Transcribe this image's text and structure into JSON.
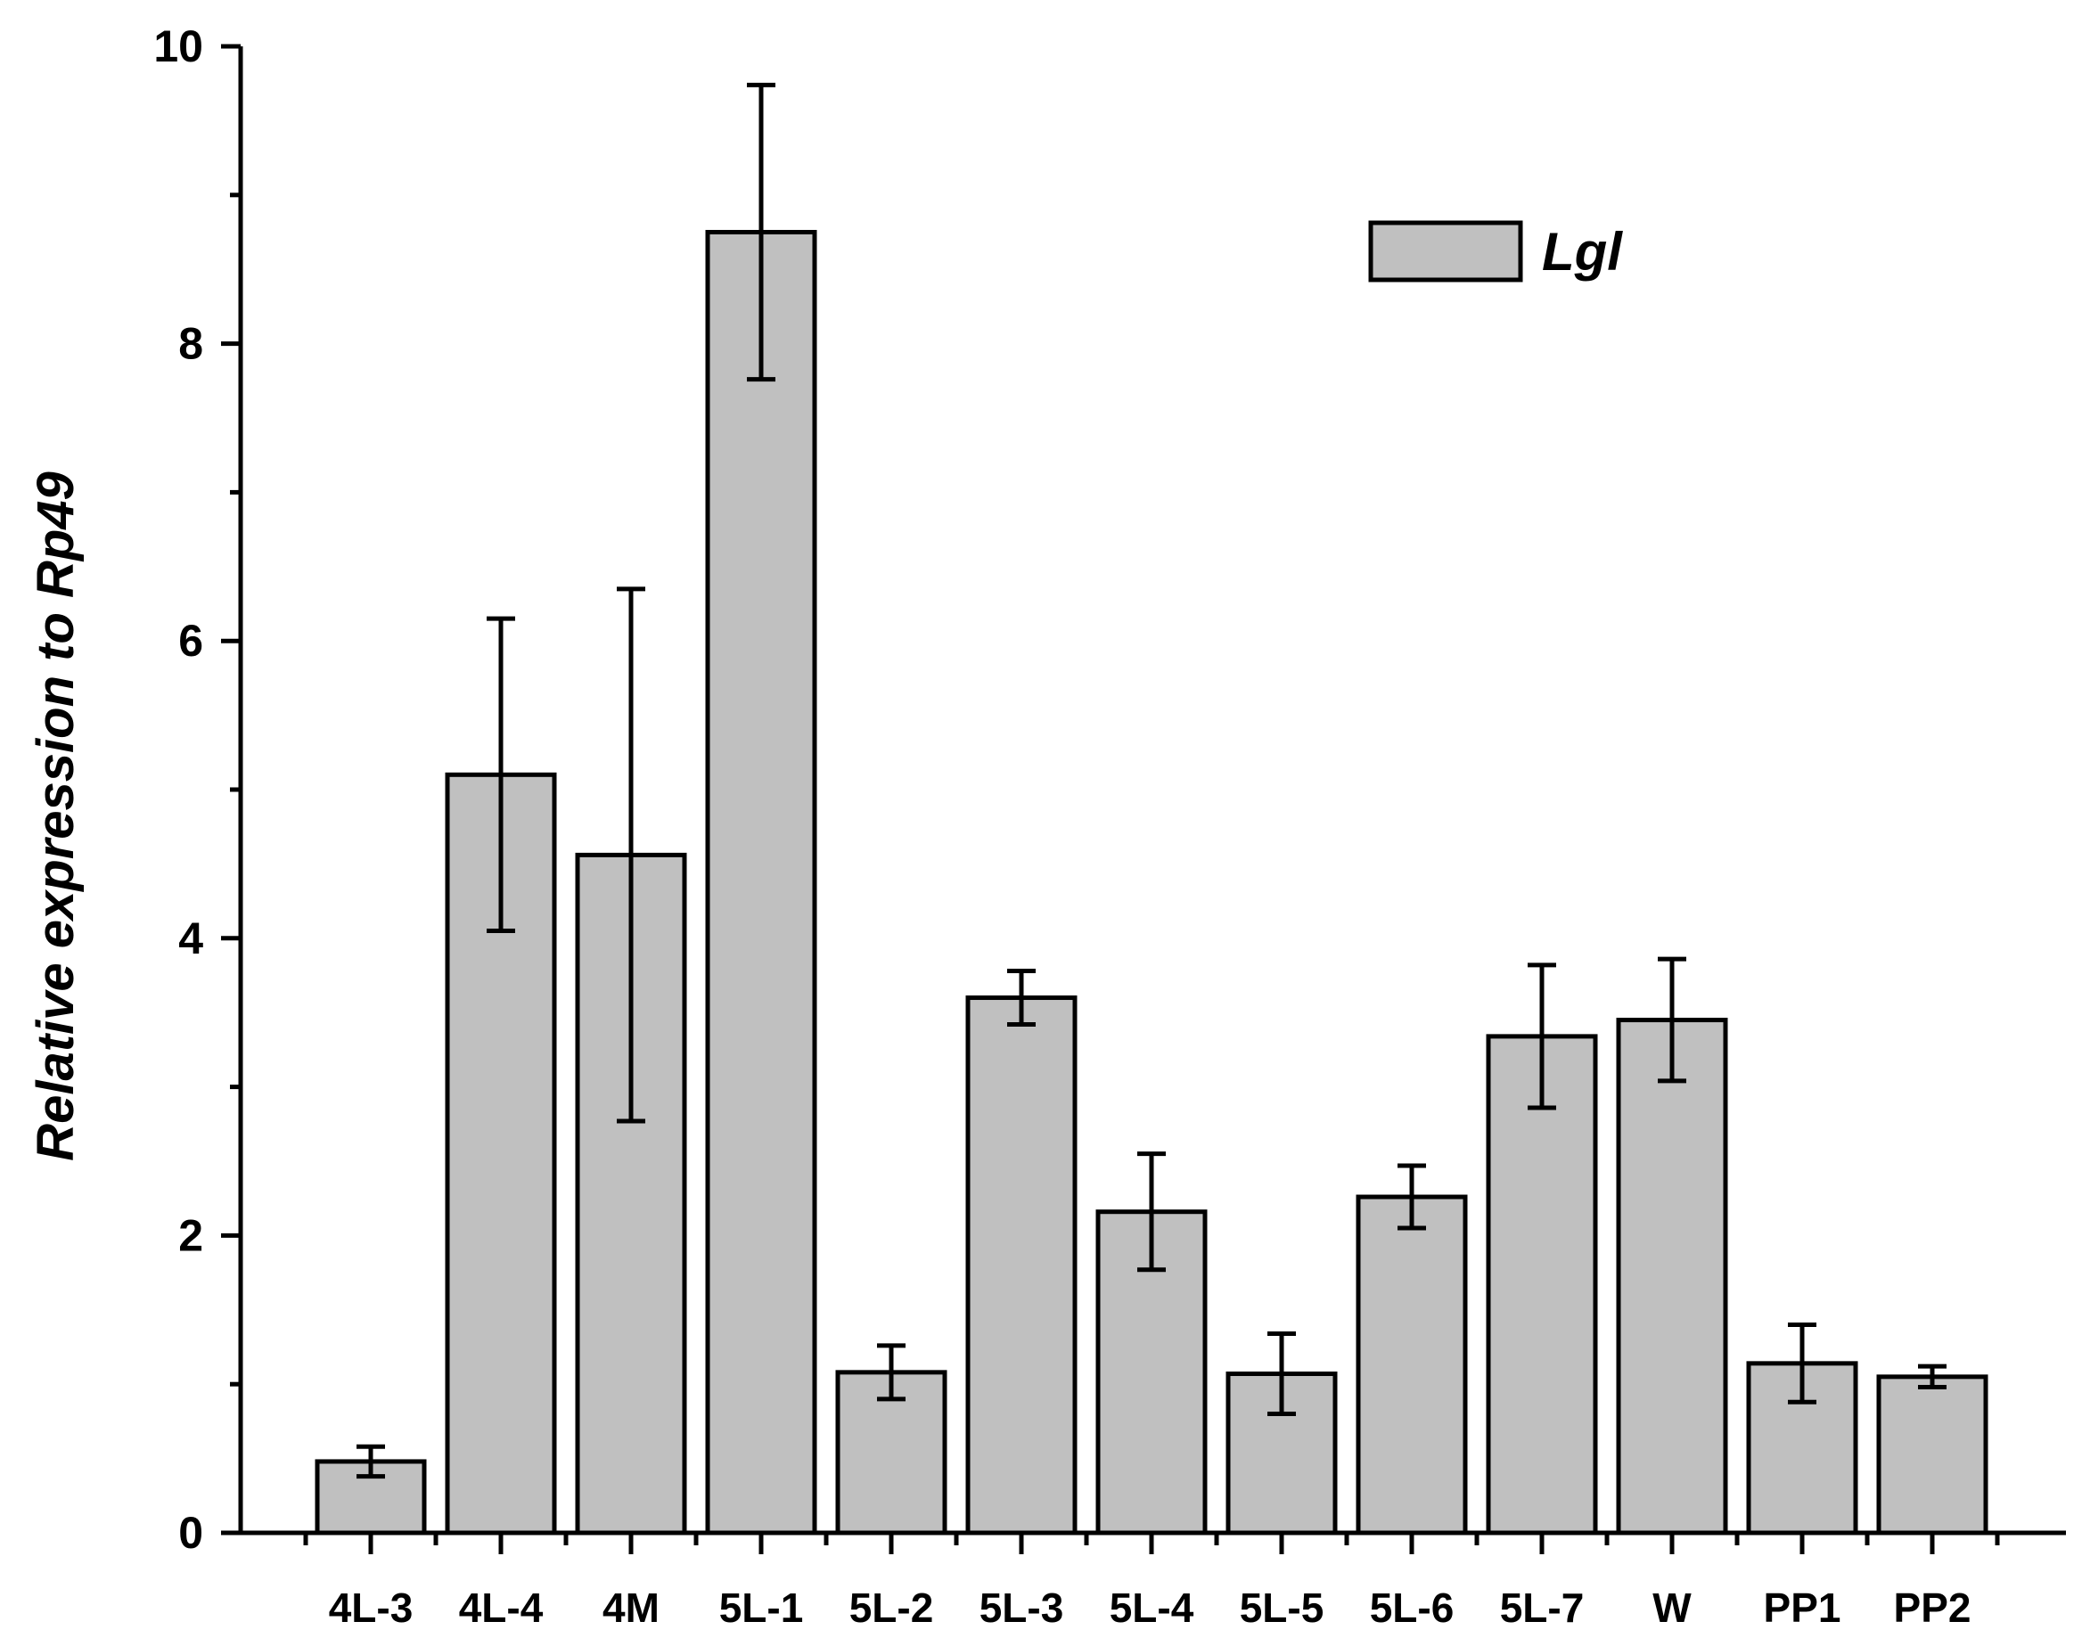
{
  "chart_data": {
    "type": "bar",
    "ylabel": "Relative expression to Rp49",
    "xlabel": "",
    "ylim": [
      0,
      10
    ],
    "yticks": [
      0,
      2,
      4,
      6,
      8,
      10
    ],
    "categories": [
      "4L-3",
      "4L-4",
      "4M",
      "5L-1",
      "5L-2",
      "5L-3",
      "5L-4",
      "5L-5",
      "5L-6",
      "5L-7",
      "W",
      "PP1",
      "PP2"
    ],
    "series": [
      {
        "name": "Lgl",
        "color": "#c0c0c0",
        "values": [
          0.48,
          5.1,
          4.56,
          8.75,
          1.08,
          3.6,
          2.16,
          1.07,
          2.26,
          3.34,
          3.45,
          1.14,
          1.05
        ],
        "errors": [
          0.1,
          1.05,
          1.79,
          0.99,
          0.18,
          0.18,
          0.39,
          0.27,
          0.21,
          0.48,
          0.41,
          0.26,
          0.07
        ]
      }
    ],
    "legend_position": "top-right"
  }
}
